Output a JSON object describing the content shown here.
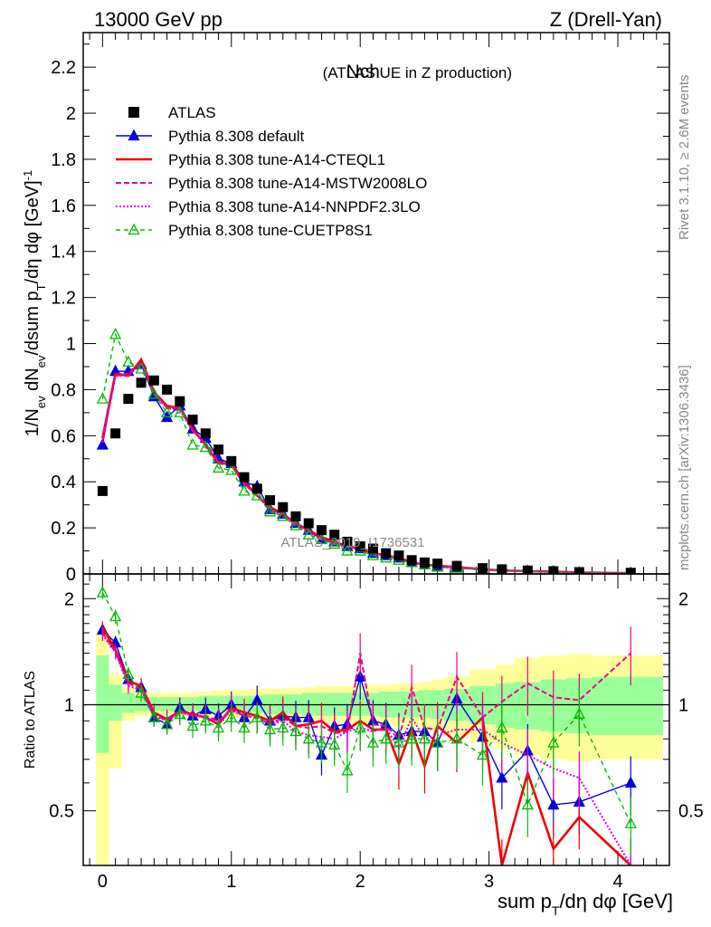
{
  "header": {
    "left": "13000 GeV pp",
    "right": "Z (Drell-Yan)"
  },
  "title_main": "Nch",
  "title_sub": "(ATLAS UE in Z production)",
  "side_text_top": "Rivet 3.1.10, ≥ 2.6M events",
  "side_text_bottom": "mcplots.cern.ch [arXiv:1306.3436]",
  "watermark": "ATLAS_2019_I1736531",
  "ylabel_top": "1/N_ev dN_ev/dsum p_T/dη dφ [GeV]^-1",
  "ylabel_bottom": "Ratio to ATLAS",
  "xlabel": "sum p_T/dη dφ [GeV]",
  "colors": {
    "atlas": "#000000",
    "default": "#0000dd",
    "cteql1": "#ee0000",
    "mstw": "#ee0088",
    "nnpdf": "#dd00dd",
    "cuetp8s1": "#00bb00",
    "band_inner": "#99ff99",
    "band_outer": "#ffff99"
  },
  "chart_data": [
    {
      "type": "scatter",
      "panel": "main",
      "xlim": [
        -0.15,
        4.4
      ],
      "ylim": [
        0,
        2.35
      ],
      "yticks": [
        0,
        0.2,
        0.4,
        0.6,
        0.8,
        1,
        1.2,
        1.4,
        1.6,
        1.8,
        2,
        2.2
      ],
      "xticks": [
        0,
        1,
        2,
        3,
        4
      ],
      "legend_position": "top-left",
      "x": [
        0,
        0.1,
        0.2,
        0.3,
        0.4,
        0.5,
        0.6,
        0.7,
        0.8,
        0.9,
        1.0,
        1.1,
        1.2,
        1.3,
        1.4,
        1.5,
        1.6,
        1.7,
        1.8,
        1.9,
        2.0,
        2.1,
        2.2,
        2.3,
        2.4,
        2.5,
        2.6,
        2.75,
        2.95,
        3.1,
        3.3,
        3.5,
        3.7,
        4.1
      ],
      "series": [
        {
          "name": "ATLAS",
          "key": "atlas",
          "style": "marker",
          "values": [
            0.36,
            0.61,
            0.76,
            0.83,
            0.84,
            0.8,
            0.75,
            0.67,
            0.61,
            0.54,
            0.49,
            0.42,
            0.37,
            0.32,
            0.29,
            0.25,
            0.22,
            0.19,
            0.17,
            0.14,
            0.12,
            0.11,
            0.09,
            0.08,
            0.06,
            0.05,
            0.045,
            0.035,
            0.025,
            0.02,
            0.015,
            0.012,
            0.008,
            0.005
          ]
        },
        {
          "name": "Pythia 8.308 default",
          "key": "default",
          "style": "line-tri",
          "values": [
            0.56,
            0.88,
            0.88,
            0.91,
            0.77,
            0.68,
            0.73,
            0.63,
            0.59,
            0.5,
            0.48,
            0.4,
            0.38,
            0.28,
            0.26,
            0.22,
            0.19,
            0.15,
            0.14,
            0.12,
            0.11,
            0.09,
            0.08,
            0.07,
            0.05,
            0.04,
            0.035,
            0.03,
            0.02,
            0.015,
            0.012,
            0.01,
            0.006,
            0.003
          ]
        },
        {
          "name": "Pythia 8.308 tune-A14-CTEQL1",
          "key": "cteql1",
          "style": "solid",
          "values": [
            0.59,
            0.87,
            0.86,
            0.93,
            0.79,
            0.73,
            0.72,
            0.63,
            0.56,
            0.48,
            0.48,
            0.4,
            0.34,
            0.29,
            0.26,
            0.22,
            0.19,
            0.16,
            0.14,
            0.12,
            0.11,
            0.09,
            0.08,
            0.07,
            0.05,
            0.04,
            0.035,
            0.03,
            0.02,
            0.015,
            0.012,
            0.01,
            0.006,
            0.003
          ]
        },
        {
          "name": "Pythia 8.308 tune-A14-MSTW2008LO",
          "key": "mstw",
          "style": "dashed",
          "values": [
            0.58,
            0.86,
            0.87,
            0.92,
            0.79,
            0.72,
            0.72,
            0.62,
            0.57,
            0.49,
            0.47,
            0.39,
            0.34,
            0.28,
            0.26,
            0.22,
            0.19,
            0.16,
            0.14,
            0.12,
            0.11,
            0.09,
            0.08,
            0.07,
            0.05,
            0.04,
            0.035,
            0.03,
            0.02,
            0.015,
            0.012,
            0.01,
            0.006,
            0.003
          ]
        },
        {
          "name": "Pythia 8.308 tune-A14-NNPDF2.3LO",
          "key": "nnpdf",
          "style": "dotted",
          "values": [
            0.57,
            0.86,
            0.86,
            0.91,
            0.78,
            0.72,
            0.71,
            0.62,
            0.56,
            0.48,
            0.47,
            0.39,
            0.34,
            0.28,
            0.25,
            0.21,
            0.18,
            0.15,
            0.13,
            0.12,
            0.1,
            0.09,
            0.08,
            0.06,
            0.05,
            0.04,
            0.03,
            0.025,
            0.02,
            0.015,
            0.01,
            0.008,
            0.005,
            0.003
          ]
        },
        {
          "name": "Pythia 8.308 tune-CUETP8S1",
          "key": "cuetp8s1",
          "style": "dashed-tri",
          "values": [
            0.76,
            1.04,
            0.92,
            0.89,
            0.78,
            0.7,
            0.7,
            0.56,
            0.55,
            0.46,
            0.45,
            0.36,
            0.34,
            0.27,
            0.25,
            0.21,
            0.17,
            0.15,
            0.13,
            0.1,
            0.1,
            0.08,
            0.07,
            0.06,
            0.05,
            0.04,
            0.03,
            0.025,
            0.02,
            0.015,
            0.01,
            0.008,
            0.005,
            0.003
          ]
        }
      ]
    },
    {
      "type": "line",
      "panel": "ratio",
      "ylim": [
        0.35,
        2.35
      ],
      "yticks": [
        0.5,
        1,
        2
      ],
      "reference_line": 1,
      "band_edges": [
        -0.05,
        0.05,
        0.15,
        0.25,
        0.35,
        0.45,
        0.55,
        0.65,
        0.75,
        0.85,
        0.95,
        1.05,
        1.15,
        1.25,
        1.35,
        1.45,
        1.55,
        1.65,
        1.75,
        1.85,
        1.95,
        2.05,
        2.15,
        2.25,
        2.35,
        2.45,
        2.55,
        2.65,
        2.85,
        3.05,
        3.2,
        3.4,
        3.6,
        3.8,
        4.35
      ],
      "band_inner": [
        [
          0.73,
          1.38
        ],
        [
          0.9,
          1.14
        ],
        [
          0.95,
          1.08
        ],
        [
          0.96,
          1.06
        ],
        [
          0.96,
          1.05
        ],
        [
          0.96,
          1.05
        ],
        [
          0.96,
          1.05
        ],
        [
          0.96,
          1.05
        ],
        [
          0.95,
          1.06
        ],
        [
          0.95,
          1.06
        ],
        [
          0.95,
          1.06
        ],
        [
          0.95,
          1.06
        ],
        [
          0.95,
          1.06
        ],
        [
          0.94,
          1.07
        ],
        [
          0.94,
          1.07
        ],
        [
          0.94,
          1.07
        ],
        [
          0.93,
          1.08
        ],
        [
          0.93,
          1.08
        ],
        [
          0.93,
          1.08
        ],
        [
          0.93,
          1.08
        ],
        [
          0.93,
          1.08
        ],
        [
          0.93,
          1.08
        ],
        [
          0.92,
          1.09
        ],
        [
          0.92,
          1.09
        ],
        [
          0.92,
          1.09
        ],
        [
          0.92,
          1.1
        ],
        [
          0.91,
          1.1
        ],
        [
          0.9,
          1.11
        ],
        [
          0.88,
          1.13
        ],
        [
          0.86,
          1.15
        ],
        [
          0.85,
          1.16
        ],
        [
          0.84,
          1.18
        ],
        [
          0.83,
          1.19
        ],
        [
          0.82,
          1.2
        ]
      ],
      "band_outer": [
        [
          0.35,
          1.62
        ],
        [
          0.66,
          1.22
        ],
        [
          0.9,
          1.12
        ],
        [
          0.93,
          1.09
        ],
        [
          0.94,
          1.08
        ],
        [
          0.94,
          1.08
        ],
        [
          0.94,
          1.08
        ],
        [
          0.94,
          1.08
        ],
        [
          0.93,
          1.09
        ],
        [
          0.93,
          1.1
        ],
        [
          0.92,
          1.1
        ],
        [
          0.92,
          1.1
        ],
        [
          0.92,
          1.11
        ],
        [
          0.91,
          1.11
        ],
        [
          0.91,
          1.11
        ],
        [
          0.9,
          1.12
        ],
        [
          0.9,
          1.12
        ],
        [
          0.89,
          1.13
        ],
        [
          0.89,
          1.13
        ],
        [
          0.89,
          1.13
        ],
        [
          0.88,
          1.14
        ],
        [
          0.88,
          1.14
        ],
        [
          0.88,
          1.14
        ],
        [
          0.87,
          1.15
        ],
        [
          0.87,
          1.15
        ],
        [
          0.86,
          1.16
        ],
        [
          0.85,
          1.18
        ],
        [
          0.82,
          1.2
        ],
        [
          0.78,
          1.26
        ],
        [
          0.75,
          1.3
        ],
        [
          0.72,
          1.36
        ],
        [
          0.7,
          1.38
        ],
        [
          0.69,
          1.39
        ],
        [
          0.7,
          1.38
        ]
      ],
      "x": [
        0,
        0.1,
        0.2,
        0.3,
        0.4,
        0.5,
        0.6,
        0.7,
        0.8,
        0.9,
        1.0,
        1.1,
        1.2,
        1.3,
        1.4,
        1.5,
        1.6,
        1.7,
        1.8,
        1.9,
        2.0,
        2.1,
        2.2,
        2.3,
        2.4,
        2.5,
        2.6,
        2.75,
        2.95,
        3.1,
        3.3,
        3.5,
        3.7,
        4.1
      ],
      "series": [
        {
          "key": "default",
          "style": "line-tri",
          "values": [
            1.63,
            1.5,
            1.18,
            1.12,
            0.92,
            0.88,
            0.98,
            0.93,
            0.97,
            0.93,
            1.0,
            0.92,
            1.03,
            0.9,
            0.93,
            0.92,
            0.92,
            0.72,
            0.87,
            0.88,
            1.2,
            0.9,
            0.88,
            0.82,
            0.84,
            0.84,
            0.78,
            1.04,
            0.81,
            0.62,
            0.74,
            0.52,
            0.53,
            0.6
          ]
        },
        {
          "key": "cteql1",
          "style": "solid",
          "values": [
            1.66,
            1.43,
            1.17,
            1.13,
            0.95,
            0.91,
            0.96,
            0.94,
            0.92,
            0.88,
            0.98,
            0.95,
            0.93,
            0.9,
            0.95,
            0.87,
            0.88,
            0.9,
            0.84,
            0.85,
            0.9,
            0.85,
            0.85,
            0.68,
            0.85,
            0.67,
            0.87,
            0.78,
            0.92,
            0.35,
            0.64,
            0.39,
            0.48,
            0.35
          ]
        },
        {
          "key": "mstw",
          "style": "dashed",
          "values": [
            1.6,
            1.41,
            1.15,
            1.11,
            0.94,
            0.9,
            0.96,
            0.93,
            0.93,
            0.9,
            0.97,
            0.93,
            0.92,
            0.88,
            0.92,
            0.87,
            0.86,
            0.87,
            0.83,
            0.84,
            1.4,
            0.88,
            0.87,
            0.8,
            1.12,
            0.86,
            0.85,
            1.2,
            0.92,
            1.02,
            1.15,
            1.05,
            1.03,
            1.4
          ]
        },
        {
          "key": "nnpdf",
          "style": "dotted",
          "values": [
            1.58,
            1.41,
            1.13,
            1.1,
            0.93,
            0.9,
            0.95,
            0.93,
            0.92,
            0.89,
            0.96,
            0.93,
            0.92,
            0.88,
            0.9,
            0.84,
            0.82,
            0.81,
            0.8,
            0.84,
            0.86,
            0.84,
            0.86,
            0.75,
            0.92,
            0.8,
            0.82,
            0.85,
            0.85,
            0.78,
            0.72,
            0.66,
            0.62,
            0.35
          ]
        },
        {
          "key": "cuetp8s1",
          "style": "dashed-tri",
          "values": [
            2.08,
            1.78,
            1.22,
            1.08,
            0.92,
            0.88,
            0.94,
            0.87,
            0.9,
            0.86,
            0.92,
            0.86,
            0.92,
            0.85,
            0.86,
            0.84,
            0.8,
            0.78,
            0.77,
            0.65,
            0.86,
            0.78,
            0.8,
            0.78,
            0.8,
            0.8,
            0.78,
            0.8,
            0.72,
            0.86,
            0.52,
            0.78,
            0.94,
            0.46
          ]
        }
      ]
    }
  ]
}
